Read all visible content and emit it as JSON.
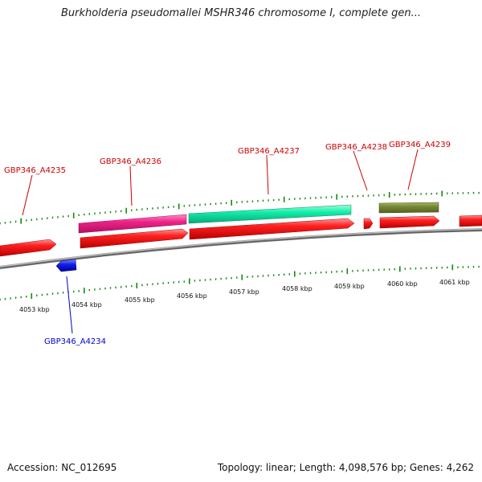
{
  "title": "Burkholderia pseudomallei MSHR346 chromosome I, complete gen...",
  "footer": {
    "accession": "Accession: NC_012695",
    "info": "Topology: linear; Length: 4,098,576 bp; Genes: 4,262"
  },
  "colors": {
    "cds": "#ff0000",
    "cds_reverse": "#0000ee",
    "gene_pink": "#ee2288",
    "gene_cyan": "#11eeaa",
    "gene_olive": "#778833",
    "ticks": "#118811",
    "backbone": "#888888",
    "label_forward": "#cc0000",
    "label_reverse": "#0000cc"
  },
  "ruler": {
    "labels": [
      "4053 kbp",
      "4054 kbp",
      "4055 kbp",
      "4056 kbp",
      "4057 kbp",
      "4058 kbp",
      "4059 kbp",
      "4060 kbp",
      "4061 kbp"
    ]
  },
  "genes": [
    {
      "id": "GBP346_A4234",
      "strand": "reverse"
    },
    {
      "id": "GBP346_A4235",
      "strand": "forward"
    },
    {
      "id": "GBP346_A4236",
      "strand": "forward"
    },
    {
      "id": "GBP346_A4237",
      "strand": "forward"
    },
    {
      "id": "GBP346_A4238",
      "strand": "forward"
    },
    {
      "id": "GBP346_A4239",
      "strand": "forward"
    }
  ]
}
